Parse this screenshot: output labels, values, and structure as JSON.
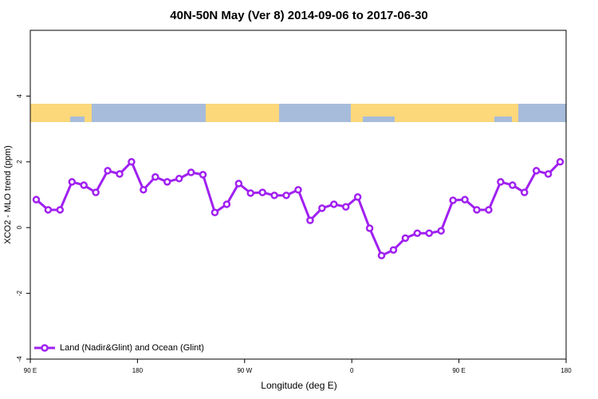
{
  "chart_data": {
    "type": "line",
    "title": "40N-50N May (Ver 8)   2014-09-06 to 2017-06-30",
    "x_label": "Longitude (deg E)",
    "y_label": "XCO2 - MLO trend (ppm)",
    "x": [
      95,
      105,
      115,
      125,
      135,
      145,
      155,
      165,
      175,
      185,
      195,
      205,
      215,
      225,
      235,
      245,
      255,
      265,
      275,
      285,
      295,
      305,
      315,
      325,
      335,
      345,
      355,
      365,
      375,
      385,
      395,
      405,
      415,
      425,
      435,
      445,
      455,
      465,
      475,
      485,
      495,
      505,
      515,
      525,
      535
    ],
    "series": [
      {
        "name": "Land (Nadir&Glint) and Ocean (Glint)",
        "color": "#a020f0",
        "values": [
          0.85,
          0.54,
          0.54,
          1.39,
          1.29,
          1.07,
          1.73,
          1.63,
          2.0,
          1.15,
          1.54,
          1.39,
          1.49,
          1.68,
          1.61,
          0.46,
          0.71,
          1.34,
          1.05,
          1.07,
          0.98,
          0.98,
          1.15,
          0.22,
          0.59,
          0.71,
          0.63,
          0.93,
          -0.02,
          -0.85,
          -0.68,
          -0.32,
          -0.17,
          -0.17,
          -0.1,
          0.83,
          0.85,
          0.54,
          0.54,
          1.39,
          1.29,
          1.07,
          1.73,
          1.63,
          2.0
        ]
      }
    ],
    "xlim": [
      90,
      540
    ],
    "xticks": [
      {
        "value": 90,
        "label": "90 E"
      },
      180,
      {
        "value": 270,
        "label": "90 W"
      },
      {
        "value": 360,
        "label": "0"
      },
      {
        "value": 450,
        "label": "90 E"
      },
      {
        "value": 540,
        "label": "180"
      }
    ],
    "ylim": [
      -4,
      6
    ],
    "yticks": [
      -4,
      -2,
      0,
      2,
      4
    ],
    "legend": "bottom-left"
  }
}
